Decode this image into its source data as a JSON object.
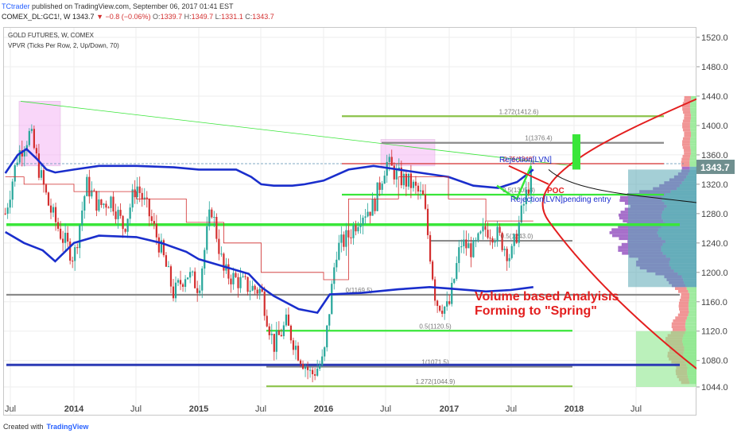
{
  "header": {
    "author": "TCtrader",
    "published_text": "published on TradingView.com, September 06, 2017 01:41 EST",
    "symbol": "COMEX_DL:GC1!, W",
    "last": "1343.7",
    "change": "▼ −0.8 (−0.06%)",
    "o_label": "O:",
    "o": "1339.7",
    "h_label": "H:",
    "h": "1349.7",
    "l_label": "L:",
    "l": "1331.1",
    "c_label": "C:",
    "c": "1343.7"
  },
  "plot": {
    "title": "GOLD FUTURES, W, COMEX",
    "indicator": "VPVR (Ticks Per Row, 2, Up/Down, 70)"
  },
  "footer": {
    "created_with": "Created with",
    "brand": "TradingView"
  },
  "colors": {
    "up": "#26a69a",
    "down": "#d32f2f",
    "ma_blue": "#1a2ecc",
    "green_level": "#39e639",
    "olive_level": "#8bc34a",
    "gray_level": "#8a8a8a",
    "navy_level": "#2c3ab5",
    "vp_pink": "#f08a8a",
    "vp_purple": "#9c5fc4",
    "vp_teal": "#5aa7b5",
    "vp_green": "#8ee88e",
    "box_pink": "#f3a6f3",
    "annotation": "#e31e1e"
  },
  "annotations": {
    "main_text": [
      "Volume based Analyisis",
      "Forming to \"Spring\""
    ],
    "rejection_1": "Rejection[LVN]",
    "rejection_2": "Rejection[LVN]pending entry",
    "poc": "POC"
  },
  "chart_data": {
    "type": "candlestick",
    "x_ticks": [
      "Jul",
      "2014",
      "Jul",
      "2015",
      "Jul",
      "2016",
      "Jul",
      "2017",
      "Jul",
      "2018",
      "Jul"
    ],
    "y_ticks": [
      1044,
      1080,
      1120,
      1160,
      1200,
      1240,
      1280,
      1320,
      1360,
      1400,
      1440,
      1480,
      1520
    ],
    "y_tick_labels": [
      "1044.0",
      "1080.0",
      "1120.0",
      "1160.0",
      "1200.0",
      "1240.0",
      "1280.0",
      "1320.0",
      "1360.0",
      "1400.0",
      "1440.0",
      "1480.0",
      "1520.0"
    ],
    "ylim": [
      1030,
      1545
    ],
    "last_price": 1343.7,
    "last_price_label": "1343.7",
    "series": [
      {
        "name": "",
        "style": "close-line",
        "x": [
          2013.45,
          2013.55,
          2013.65,
          2013.72,
          2013.8,
          2013.9,
          2014.0,
          2014.1,
          2014.2,
          2014.3,
          2014.4,
          2014.5,
          2014.6,
          2014.7,
          2014.8,
          2014.9,
          2015.0,
          2015.1,
          2015.2,
          2015.3,
          2015.4,
          2015.5,
          2015.6,
          2015.7,
          2015.8,
          2015.9,
          2016.0,
          2016.1,
          2016.2,
          2016.3,
          2016.4,
          2016.5,
          2016.6,
          2016.7,
          2016.8,
          2016.9,
          2017.0,
          2017.1,
          2017.2,
          2017.3,
          2017.4,
          2017.5,
          2017.6,
          2017.68
        ],
        "values": [
          1280,
          1360,
          1390,
          1340,
          1290,
          1250,
          1220,
          1320,
          1290,
          1300,
          1260,
          1320,
          1280,
          1230,
          1170,
          1200,
          1180,
          1290,
          1200,
          1190,
          1180,
          1175,
          1100,
          1130,
          1090,
          1060,
          1080,
          1230,
          1250,
          1280,
          1290,
          1350,
          1330,
          1320,
          1300,
          1160,
          1150,
          1240,
          1230,
          1260,
          1250,
          1220,
          1290,
          1343.7
        ]
      }
    ],
    "horizontal_levels": [
      {
        "label": "1.272(1412.6)",
        "value": 1412.6,
        "color": "olive"
      },
      {
        "label": "1(1376.4)",
        "value": 1376.4,
        "color": "gray"
      },
      {
        "label": "0.75(1348)",
        "value": 1348.0,
        "color": "red"
      },
      {
        "label": "0.5(1305.8)",
        "value": 1305.8,
        "color": "green"
      },
      {
        "label": "0.5(1243.0)",
        "value": 1243.0,
        "color": "gray"
      },
      {
        "label": "",
        "value": 1265.0,
        "color": "green"
      },
      {
        "label": "0(1169.5)",
        "value": 1169.5,
        "color": "gray"
      },
      {
        "label": "0.5(1120.5)",
        "value": 1120.5,
        "color": "green"
      },
      {
        "label": "1(1071.5)",
        "value": 1071.5,
        "color": "gray"
      },
      {
        "label": "",
        "value": 1074.0,
        "color": "navy"
      },
      {
        "label": "1.272(1044.9)",
        "value": 1044.9,
        "color": "olive"
      }
    ]
  }
}
